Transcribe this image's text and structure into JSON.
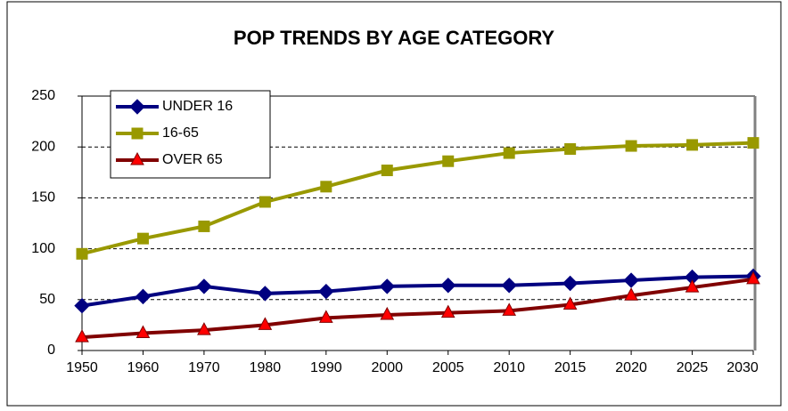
{
  "chart_data": {
    "type": "line",
    "title": "POP TRENDS BY AGE CATEGORY",
    "categories": [
      "1950",
      "1960",
      "1970",
      "1980",
      "1990",
      "2000",
      "2005",
      "2010",
      "2015",
      "2020",
      "2025",
      "2030"
    ],
    "series": [
      {
        "name": "UNDER 16",
        "color": "#000080",
        "marker": "diamond",
        "marker_color": "#000080",
        "values": [
          44,
          53,
          63,
          56,
          58,
          63,
          64,
          64,
          66,
          69,
          72,
          73
        ]
      },
      {
        "name": "16-65",
        "color": "#999900",
        "marker": "square",
        "marker_color": "#999900",
        "values": [
          95,
          110,
          122,
          146,
          161,
          177,
          186,
          194,
          198,
          201,
          202,
          204
        ]
      },
      {
        "name": "OVER 65",
        "color": "#800000",
        "marker": "triangle",
        "marker_color": "#ff0000",
        "values": [
          13,
          17,
          20,
          25,
          32,
          35,
          37,
          39,
          45,
          54,
          62,
          70
        ]
      }
    ],
    "ylim": [
      0,
      250
    ],
    "yticks": [
      0,
      50,
      100,
      150,
      200,
      250
    ],
    "grid": true,
    "legend": "upper left"
  }
}
